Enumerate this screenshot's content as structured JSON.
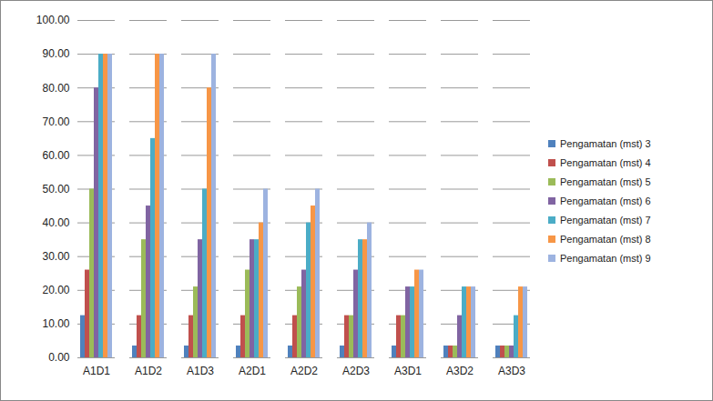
{
  "chart_data": {
    "type": "bar",
    "categories": [
      "A1D1",
      "A1D2",
      "A1D3",
      "A2D1",
      "A2D2",
      "A2D3",
      "A3D1",
      "A3D2",
      "A3D3"
    ],
    "series": [
      {
        "name": "Pengamatan (mst) 3",
        "color": "#4F81BD",
        "values": [
          12.5,
          3.5,
          3.5,
          3.5,
          3.5,
          3.5,
          3.5,
          3.5,
          3.5
        ]
      },
      {
        "name": "Pengamatan (mst) 4",
        "color": "#C0504D",
        "values": [
          26,
          12.5,
          12.5,
          12.5,
          12.5,
          12.5,
          12.5,
          3.5,
          3.5
        ]
      },
      {
        "name": "Pengamatan (mst) 5",
        "color": "#9BBB59",
        "values": [
          50,
          35,
          21,
          26,
          21,
          12.5,
          12.5,
          3.5,
          3.5
        ]
      },
      {
        "name": "Pengamatan (mst) 6",
        "color": "#8064A2",
        "values": [
          80,
          45,
          35,
          35,
          26,
          26,
          21,
          12.5,
          3.5
        ]
      },
      {
        "name": "Pengamatan (mst) 7",
        "color": "#4BACC6",
        "values": [
          90,
          65,
          50,
          35,
          40,
          35,
          21,
          21,
          12.5
        ]
      },
      {
        "name": "Pengamatan (mst) 8",
        "color": "#F79646",
        "values": [
          90,
          90,
          80,
          40,
          45,
          35,
          26,
          21,
          21
        ]
      },
      {
        "name": "Pengamatan (mst) 9",
        "color": "#9DB3E0",
        "values": [
          90,
          90,
          90,
          50,
          50,
          40,
          26,
          21,
          21
        ]
      }
    ],
    "ylim": [
      0,
      100
    ],
    "yticks": [
      {
        "value": 0,
        "label": "0.00"
      },
      {
        "value": 10,
        "label": "10.00"
      },
      {
        "value": 20,
        "label": "20.00"
      },
      {
        "value": 30,
        "label": "30.00"
      },
      {
        "value": 40,
        "label": "40.00"
      },
      {
        "value": 50,
        "label": "50.00"
      },
      {
        "value": 60,
        "label": "60.00"
      },
      {
        "value": 70,
        "label": "70.00"
      },
      {
        "value": 80,
        "label": "80.00"
      },
      {
        "value": 90,
        "label": "90.00"
      },
      {
        "value": 100,
        "label": "100.00"
      }
    ],
    "grid": true,
    "legend": "right"
  }
}
